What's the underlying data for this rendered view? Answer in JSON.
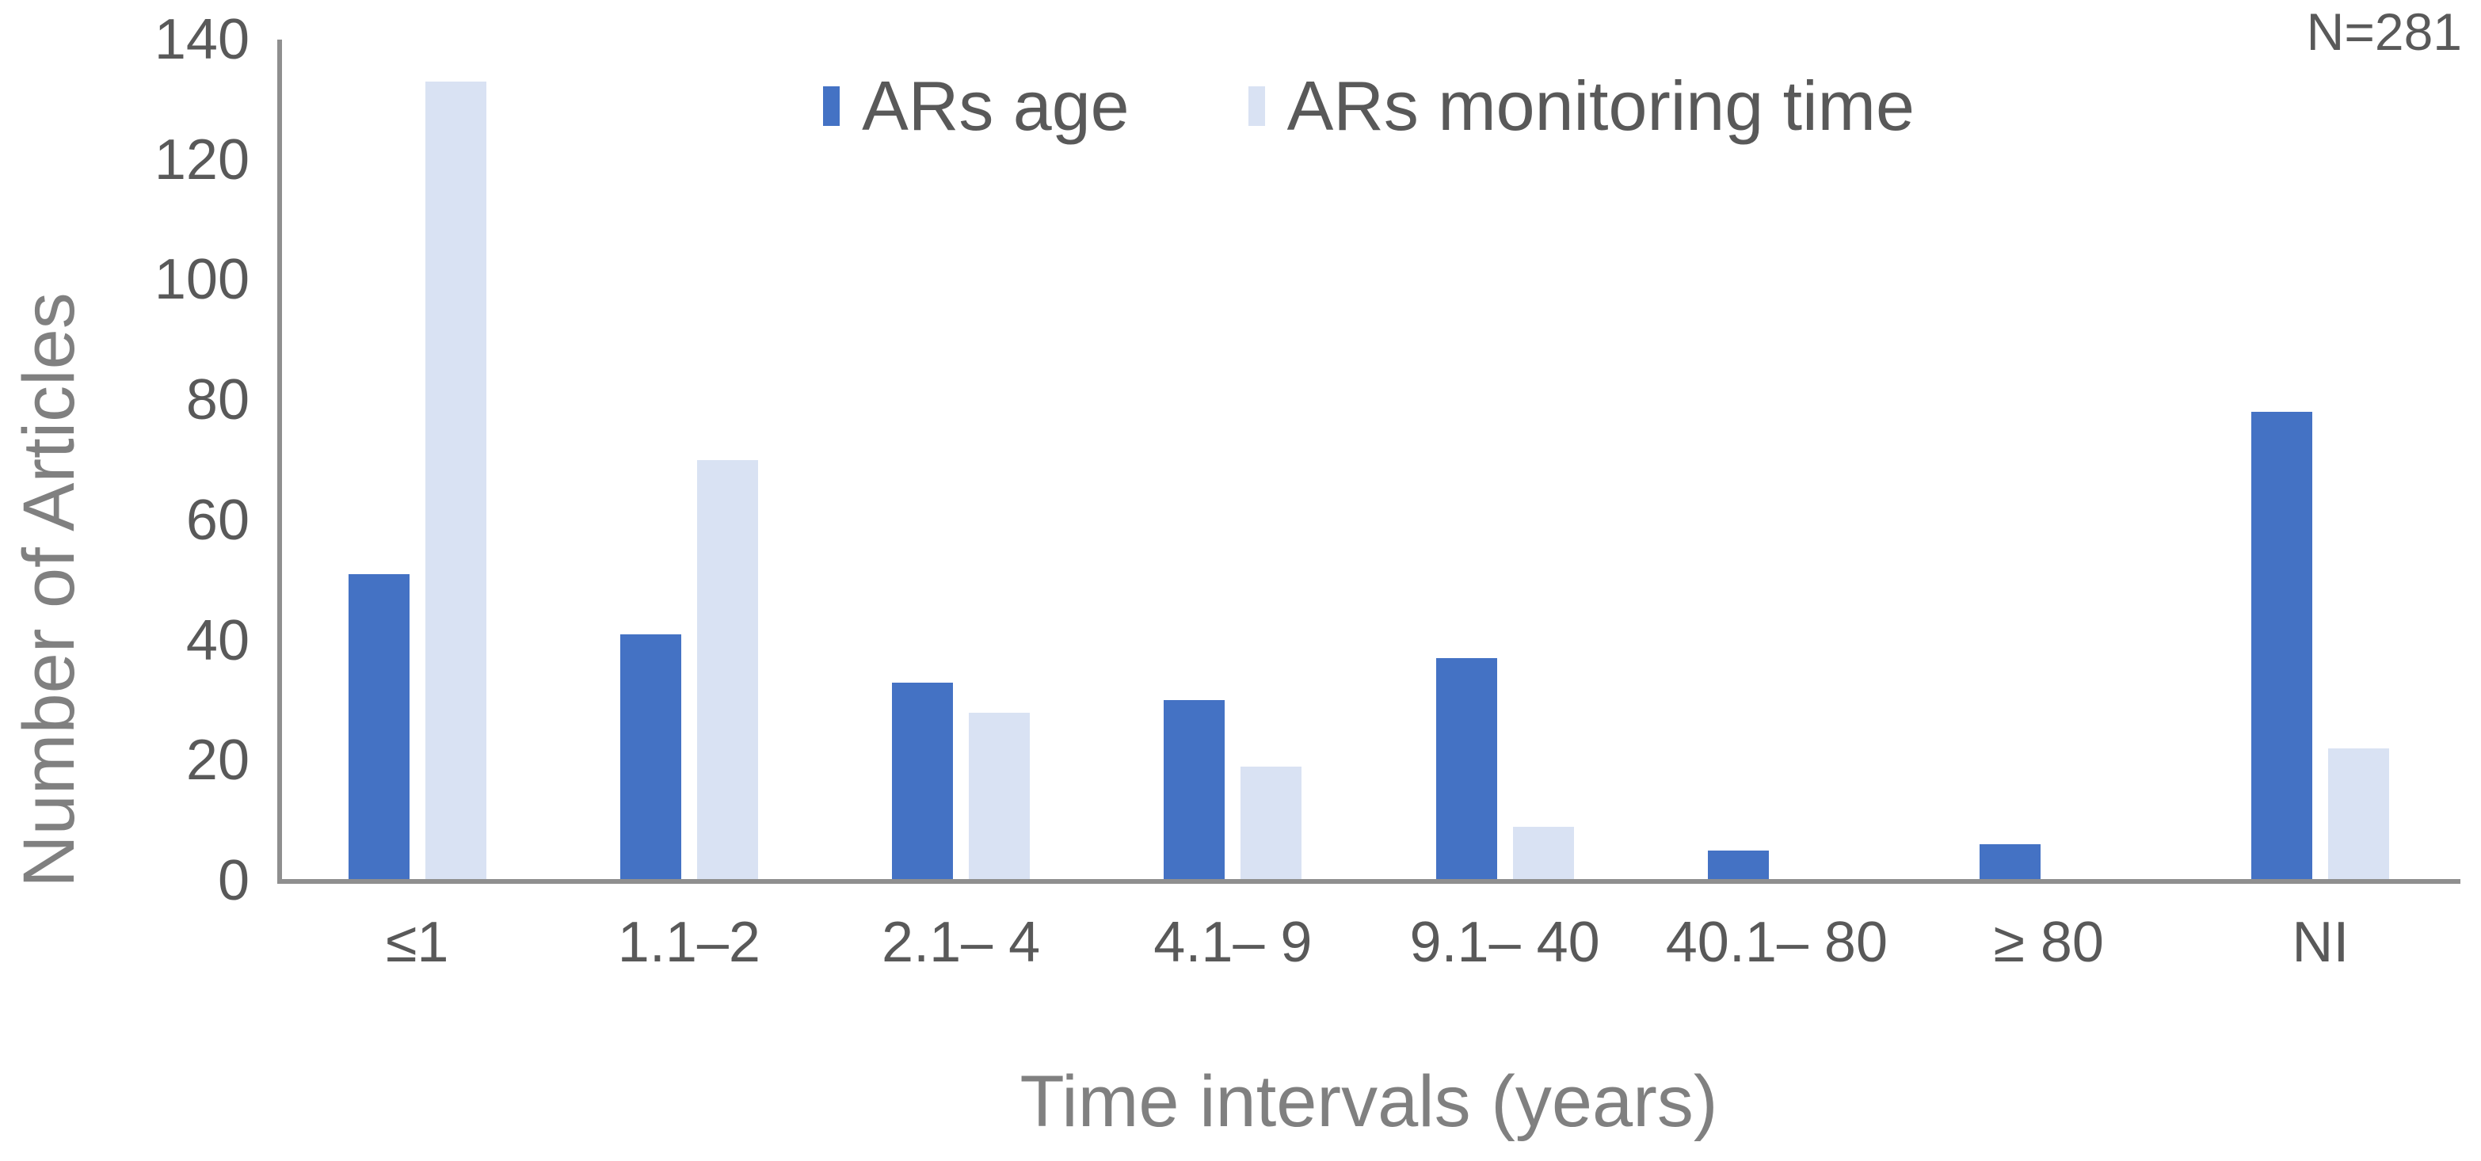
{
  "annotation": {
    "n_label": "N=281"
  },
  "legend": [
    {
      "label": "ARs age",
      "color": "#4472C4"
    },
    {
      "label": "ARs monitoring time",
      "color": "#D9E2F3"
    }
  ],
  "chart_data": {
    "type": "bar",
    "title": "",
    "xlabel": "Time intervals (years)",
    "ylabel": "Number of Articles",
    "categories": [
      "≤1",
      "1.1–2",
      "2.1– 4",
      "4.1– 9",
      "9.1– 40",
      "40.1– 80",
      "≥ 80",
      "NI"
    ],
    "series": [
      {
        "name": "ARs age",
        "color": "#4472C4",
        "values": [
          51,
          41,
          33,
          30,
          37,
          5,
          6,
          78
        ]
      },
      {
        "name": "ARs monitoring time",
        "color": "#D9E2F3",
        "values": [
          133,
          70,
          28,
          19,
          9,
          0,
          0,
          22
        ]
      }
    ],
    "ylim": [
      0,
      140
    ],
    "yticks": [
      0,
      20,
      40,
      60,
      80,
      100,
      120,
      140
    ],
    "grid": false,
    "legend_position": "top-center",
    "annotation": "N=281",
    "totals_note_sum_each_series": 281
  },
  "colors": {
    "axis_line": "#8f8f8f",
    "tick_text": "#595959",
    "axis_title_text": "#808080",
    "legend_text": "#595959",
    "background": "#ffffff"
  }
}
